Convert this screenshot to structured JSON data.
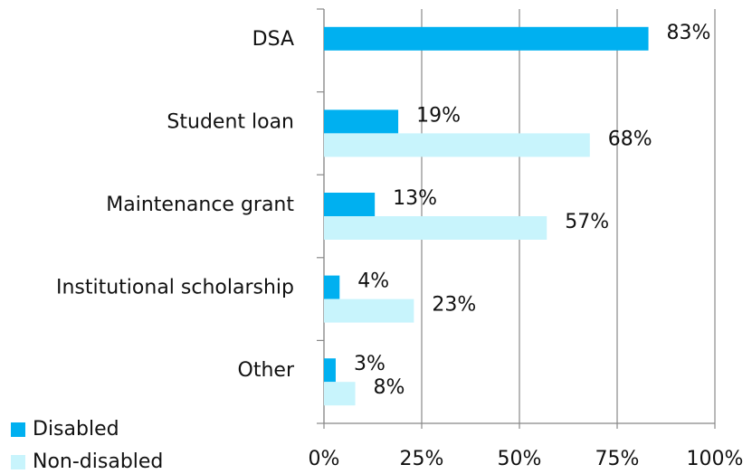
{
  "chart_data": {
    "type": "bar",
    "orientation": "horizontal",
    "categories": [
      "DSA",
      "Student loan",
      "Maintenance grant",
      "Institutional scholarship",
      "Other"
    ],
    "series": [
      {
        "name": "Disabled",
        "color": "#00b0f0",
        "values": [
          83,
          19,
          13,
          4,
          3
        ],
        "value_labels": [
          "83%",
          "19%",
          "13%",
          "4%",
          "3%"
        ]
      },
      {
        "name": "Non-disabled",
        "color": "#c8f4fc",
        "values": [
          null,
          68,
          57,
          23,
          8
        ],
        "value_labels": [
          null,
          "68%",
          "57%",
          "23%",
          "8%"
        ]
      }
    ],
    "xlim": [
      0,
      100
    ],
    "xticks": [
      {
        "value": 0,
        "label": "0%"
      },
      {
        "value": 25,
        "label": "25%"
      },
      {
        "value": 50,
        "label": "50%"
      },
      {
        "value": 75,
        "label": "75%"
      },
      {
        "value": 100,
        "label": "100%"
      }
    ],
    "grid": true,
    "legend": "bottom-left"
  }
}
